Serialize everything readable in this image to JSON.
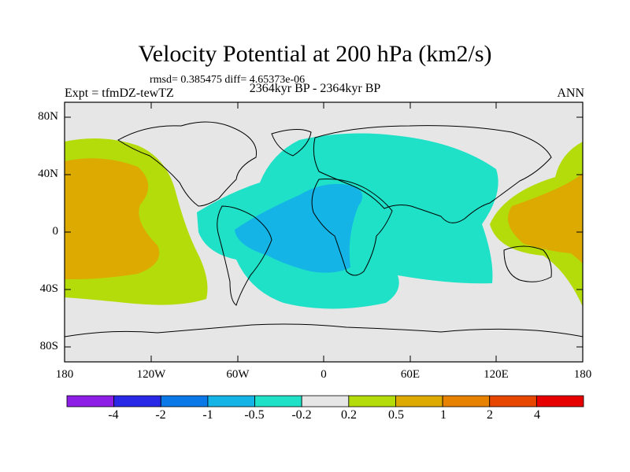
{
  "title": "Velocity Potential at 200 hPa (km2/s)",
  "stats": "rmsd= 0.385475 diff= 4.65373e-06",
  "experiment": "Expt = tfmDZ-tewTZ",
  "period": "2364kyr BP - 2364kyr BP",
  "season": "ANN",
  "map": {
    "y_ticks": [
      "80N",
      "40N",
      "0",
      "40S",
      "80S"
    ],
    "x_ticks": [
      "180",
      "120W",
      "60W",
      "0",
      "60E",
      "120E",
      "180"
    ],
    "background_color": "#e6e6e6"
  },
  "colorbar": {
    "colors": [
      "#8c1ee6",
      "#2828e6",
      "#0a78e6",
      "#14b4e6",
      "#1ee1c8",
      "#e6e6e6",
      "#b4dc0a",
      "#dcaa00",
      "#e68200",
      "#e64600",
      "#e60000"
    ],
    "labels": [
      "-4",
      "-2",
      "-1",
      "-0.5",
      "-0.2",
      "0.2",
      "0.5",
      "1",
      "2",
      "4"
    ]
  }
}
